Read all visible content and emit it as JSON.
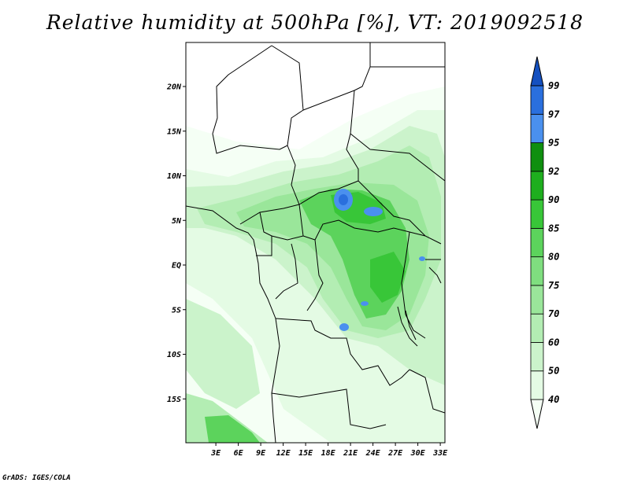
{
  "title": "Relative humidity at 500hPa [%], VT: 2019092518",
  "footer": "GrADS: IGES/COLA",
  "map": {
    "region": "Central Africa",
    "lon_range": [
      0,
      36
    ],
    "lat_range": [
      -20,
      25
    ],
    "lat_ticks": [
      {
        "value": 20,
        "label": "20N"
      },
      {
        "value": 15,
        "label": "15N"
      },
      {
        "value": 10,
        "label": "10N"
      },
      {
        "value": 5,
        "label": "5N"
      },
      {
        "value": 0,
        "label": "EQ"
      },
      {
        "value": -5,
        "label": "5S"
      },
      {
        "value": -10,
        "label": "10S"
      },
      {
        "value": -15,
        "label": "15S"
      }
    ],
    "lon_ticks": [
      {
        "value": 3,
        "label": "3E"
      },
      {
        "value": 6,
        "label": "6E"
      },
      {
        "value": 9,
        "label": "9E"
      },
      {
        "value": 12,
        "label": "12E"
      },
      {
        "value": 15,
        "label": "15E"
      },
      {
        "value": 18,
        "label": "18E"
      },
      {
        "value": 21,
        "label": "21E"
      },
      {
        "value": 24,
        "label": "24E"
      },
      {
        "value": 27,
        "label": "27E"
      },
      {
        "value": 30,
        "label": "30E"
      },
      {
        "value": 33,
        "label": "33E"
      }
    ]
  },
  "colorbar": {
    "levels": [
      "40",
      "50",
      "60",
      "70",
      "75",
      "80",
      "85",
      "90",
      "92",
      "95",
      "97",
      "99"
    ],
    "colors": [
      "#f5fff5",
      "#e4fbe4",
      "#cbf3cb",
      "#b3edb3",
      "#9ae69a",
      "#7fde7f",
      "#5cd35c",
      "#38c638",
      "#1eae1e",
      "#0f8f0f",
      "#4a90ee",
      "#2a6fdd",
      "#1450c0"
    ]
  }
}
